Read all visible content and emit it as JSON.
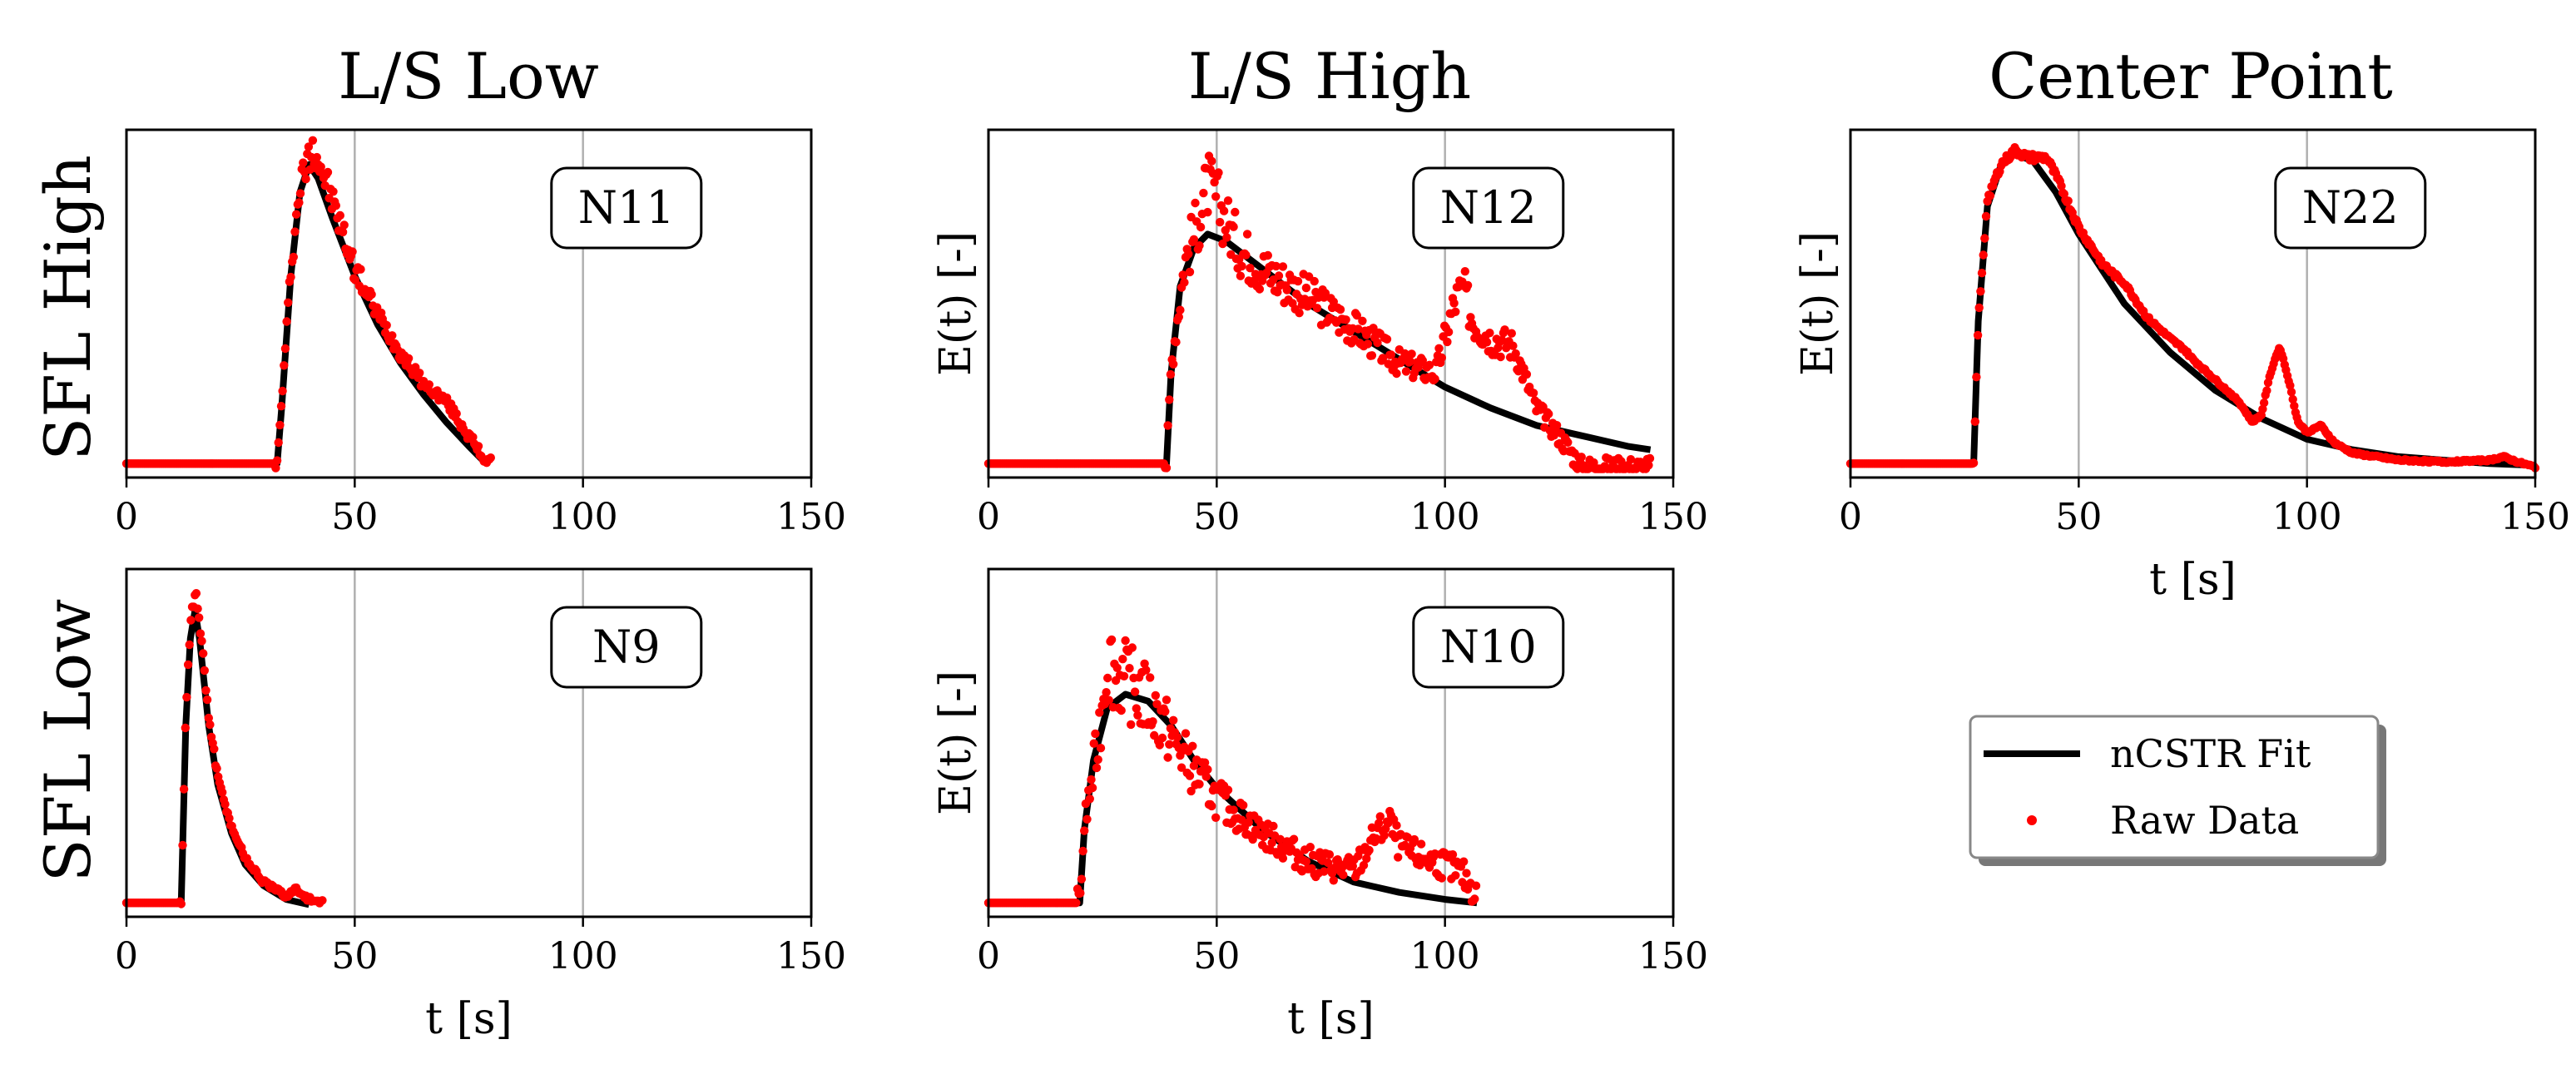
{
  "chart_data": {
    "type": "line",
    "layout": "grid 2x3 small multiples",
    "column_titles": [
      "L/S Low",
      "L/S High",
      "Center Point"
    ],
    "row_titles": [
      "SFL High",
      "SFL Low"
    ],
    "legend": {
      "entries": [
        "nCSTR Fit",
        "Raw Data"
      ],
      "colors": {
        "fit": "#000000",
        "raw": "#ff0000"
      }
    },
    "panels": [
      {
        "id": "N11",
        "label": "N11",
        "row": 0,
        "col": 0,
        "xlim": [
          0,
          150
        ],
        "xticks": [
          0,
          50,
          100,
          150
        ],
        "xlabel": "",
        "ylabel": "",
        "noise": 0.06,
        "fit": [
          [
            0,
            0.04
          ],
          [
            33,
            0.04
          ],
          [
            34,
            0.2
          ],
          [
            36,
            0.58
          ],
          [
            38,
            0.82
          ],
          [
            40,
            0.9
          ],
          [
            42,
            0.86
          ],
          [
            45,
            0.75
          ],
          [
            50,
            0.58
          ],
          [
            55,
            0.44
          ],
          [
            60,
            0.33
          ],
          [
            65,
            0.24
          ],
          [
            70,
            0.16
          ],
          [
            75,
            0.09
          ],
          [
            78,
            0.05
          ]
        ],
        "raw": [
          [
            0,
            0.04
          ],
          [
            33,
            0.04
          ],
          [
            34,
            0.22
          ],
          [
            36,
            0.6
          ],
          [
            38,
            0.84
          ],
          [
            40,
            0.92
          ],
          [
            41,
            0.96
          ],
          [
            43,
            0.88
          ],
          [
            45,
            0.8
          ],
          [
            50,
            0.6
          ],
          [
            55,
            0.47
          ],
          [
            60,
            0.36
          ],
          [
            65,
            0.27
          ],
          [
            70,
            0.22
          ],
          [
            75,
            0.12
          ],
          [
            78,
            0.06
          ],
          [
            80,
            0.04
          ]
        ]
      },
      {
        "id": "N12",
        "label": "N12",
        "row": 0,
        "col": 1,
        "xlim": [
          0,
          150
        ],
        "xticks": [
          0,
          50,
          100,
          150
        ],
        "xlabel": "",
        "ylabel": "E(t) [-]",
        "noise": 0.12,
        "fit": [
          [
            0,
            0.04
          ],
          [
            39,
            0.04
          ],
          [
            40,
            0.3
          ],
          [
            42,
            0.55
          ],
          [
            45,
            0.66
          ],
          [
            48,
            0.7
          ],
          [
            52,
            0.68
          ],
          [
            60,
            0.6
          ],
          [
            70,
            0.5
          ],
          [
            80,
            0.42
          ],
          [
            90,
            0.34
          ],
          [
            100,
            0.26
          ],
          [
            110,
            0.2
          ],
          [
            120,
            0.15
          ],
          [
            130,
            0.12
          ],
          [
            140,
            0.09
          ],
          [
            145,
            0.08
          ]
        ],
        "raw": [
          [
            0,
            0.04
          ],
          [
            39,
            0.04
          ],
          [
            40,
            0.32
          ],
          [
            43,
            0.62
          ],
          [
            46,
            0.74
          ],
          [
            48,
            0.84
          ],
          [
            50,
            0.8
          ],
          [
            52,
            0.74
          ],
          [
            55,
            0.66
          ],
          [
            60,
            0.6
          ],
          [
            70,
            0.52
          ],
          [
            80,
            0.43
          ],
          [
            90,
            0.33
          ],
          [
            98,
            0.3
          ],
          [
            102,
            0.5
          ],
          [
            104,
            0.55
          ],
          [
            106,
            0.45
          ],
          [
            110,
            0.4
          ],
          [
            115,
            0.38
          ],
          [
            120,
            0.2
          ],
          [
            125,
            0.12
          ],
          [
            130,
            0.03
          ],
          [
            140,
            0.03
          ],
          [
            145,
            0.03
          ]
        ]
      },
      {
        "id": "N22",
        "label": "N22",
        "row": 0,
        "col": 2,
        "xlim": [
          0,
          150
        ],
        "xticks": [
          0,
          50,
          100,
          150
        ],
        "xlabel": "t [s]",
        "ylabel": "E(t) [-]",
        "noise": 0.012,
        "fit": [
          [
            0,
            0.04
          ],
          [
            27,
            0.04
          ],
          [
            28,
            0.45
          ],
          [
            30,
            0.78
          ],
          [
            33,
            0.9
          ],
          [
            36,
            0.93
          ],
          [
            40,
            0.91
          ],
          [
            45,
            0.82
          ],
          [
            50,
            0.7
          ],
          [
            60,
            0.5
          ],
          [
            70,
            0.36
          ],
          [
            80,
            0.25
          ],
          [
            90,
            0.17
          ],
          [
            100,
            0.11
          ],
          [
            110,
            0.08
          ],
          [
            120,
            0.06
          ],
          [
            130,
            0.05
          ],
          [
            140,
            0.04
          ],
          [
            150,
            0.035
          ]
        ],
        "raw": [
          [
            0,
            0.04
          ],
          [
            27,
            0.04
          ],
          [
            28,
            0.45
          ],
          [
            30,
            0.8
          ],
          [
            33,
            0.9
          ],
          [
            36,
            0.94
          ],
          [
            39,
            0.92
          ],
          [
            43,
            0.92
          ],
          [
            46,
            0.84
          ],
          [
            50,
            0.72
          ],
          [
            55,
            0.62
          ],
          [
            58,
            0.58
          ],
          [
            60,
            0.56
          ],
          [
            65,
            0.46
          ],
          [
            70,
            0.4
          ],
          [
            73,
            0.37
          ],
          [
            75,
            0.34
          ],
          [
            80,
            0.28
          ],
          [
            85,
            0.22
          ],
          [
            88,
            0.16
          ],
          [
            90,
            0.18
          ],
          [
            92,
            0.3
          ],
          [
            94,
            0.38
          ],
          [
            96,
            0.28
          ],
          [
            98,
            0.16
          ],
          [
            100,
            0.13
          ],
          [
            103,
            0.15
          ],
          [
            106,
            0.1
          ],
          [
            110,
            0.07
          ],
          [
            120,
            0.05
          ],
          [
            130,
            0.045
          ],
          [
            140,
            0.05
          ],
          [
            143,
            0.06
          ],
          [
            146,
            0.045
          ],
          [
            150,
            0.03
          ]
        ]
      },
      {
        "id": "N9",
        "label": "N9",
        "row": 1,
        "col": 0,
        "xlim": [
          0,
          150
        ],
        "xticks": [
          0,
          50,
          100,
          150
        ],
        "xlabel": "t [s]",
        "ylabel": "",
        "noise": 0.03,
        "fit": [
          [
            0,
            0.04
          ],
          [
            12,
            0.04
          ],
          [
            13,
            0.55
          ],
          [
            14,
            0.8
          ],
          [
            15,
            0.88
          ],
          [
            16,
            0.8
          ],
          [
            18,
            0.55
          ],
          [
            20,
            0.38
          ],
          [
            23,
            0.24
          ],
          [
            26,
            0.15
          ],
          [
            30,
            0.09
          ],
          [
            35,
            0.05
          ],
          [
            40,
            0.035
          ]
        ],
        "raw": [
          [
            0,
            0.04
          ],
          [
            12,
            0.04
          ],
          [
            13,
            0.6
          ],
          [
            14,
            0.84
          ],
          [
            15,
            0.94
          ],
          [
            16,
            0.85
          ],
          [
            18,
            0.58
          ],
          [
            20,
            0.4
          ],
          [
            23,
            0.26
          ],
          [
            26,
            0.17
          ],
          [
            30,
            0.1
          ],
          [
            35,
            0.06
          ],
          [
            37,
            0.08
          ],
          [
            40,
            0.05
          ],
          [
            43,
            0.04
          ]
        ]
      },
      {
        "id": "N10",
        "label": "N10",
        "row": 1,
        "col": 1,
        "xlim": [
          0,
          150
        ],
        "xticks": [
          0,
          50,
          100,
          150
        ],
        "xlabel": "t [s]",
        "ylabel": "E(t) [-]",
        "noise": 0.17,
        "fit": [
          [
            0,
            0.04
          ],
          [
            20,
            0.04
          ],
          [
            21,
            0.25
          ],
          [
            23,
            0.45
          ],
          [
            26,
            0.6
          ],
          [
            30,
            0.64
          ],
          [
            35,
            0.62
          ],
          [
            40,
            0.55
          ],
          [
            45,
            0.45
          ],
          [
            50,
            0.37
          ],
          [
            60,
            0.25
          ],
          [
            70,
            0.16
          ],
          [
            80,
            0.1
          ],
          [
            90,
            0.07
          ],
          [
            100,
            0.05
          ],
          [
            107,
            0.04
          ]
        ],
        "raw": [
          [
            0,
            0.04
          ],
          [
            20,
            0.04
          ],
          [
            21,
            0.26
          ],
          [
            24,
            0.5
          ],
          [
            26,
            0.75
          ],
          [
            28,
            0.7
          ],
          [
            30,
            0.68
          ],
          [
            35,
            0.62
          ],
          [
            40,
            0.52
          ],
          [
            45,
            0.42
          ],
          [
            50,
            0.34
          ],
          [
            60,
            0.24
          ],
          [
            70,
            0.16
          ],
          [
            80,
            0.13
          ],
          [
            85,
            0.24
          ],
          [
            88,
            0.27
          ],
          [
            90,
            0.2
          ],
          [
            95,
            0.17
          ],
          [
            100,
            0.15
          ],
          [
            104,
            0.12
          ],
          [
            107,
            0.06
          ]
        ]
      }
    ]
  }
}
